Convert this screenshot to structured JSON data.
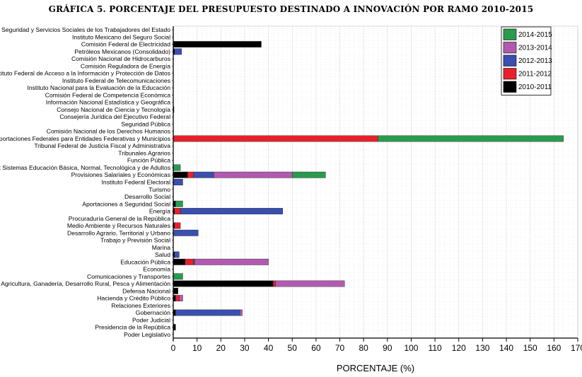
{
  "chart_data": {
    "type": "bar",
    "orientation": "horizontal",
    "stacked": true,
    "title": "GRÁFICA 5.  PORCENTAJE DEL PRESUPUESTO DESTINADO A INNOVACIÓN POR RAMO 2010-2015",
    "xlabel": "PORCENTAJE (%)",
    "ylabel": "",
    "xlim": [
      0,
      170
    ],
    "xticks": [
      0,
      10,
      20,
      30,
      40,
      50,
      60,
      70,
      80,
      90,
      100,
      110,
      120,
      130,
      140,
      150,
      160,
      170
    ],
    "grid": true,
    "legend_position": "top-right",
    "legend_order": [
      "2014-2015",
      "2013-2014",
      "2012-2013",
      "2011-2012",
      "2010-2011"
    ],
    "categories": [
      "Instituto de Seguridad y Servicios Sociales de los Trabajadores del Estado",
      "Instituto Mexicano del Seguro Social",
      "Comisión Federal de Electricidad",
      "Petróleos Mexicanos (Consolidado)",
      "Comisión Nacional de Hidrocarburos",
      "Comisión Reguladora de Energía",
      "Instituto Federal de Acceso a la Información y Protección de Datos",
      "Instituto Federal de Telecomunicaciones",
      "Instituto Nacional para la Evaluación de la Educación",
      "Comisión Federal de Competencia Económica",
      "Información Nacional Estadística y Geográfica",
      "Consejo Nacional de Ciencia y Tecnología",
      "Consejería Jurídica del Ejecutivo Federal",
      "Seguridad Pública",
      "Comisión Nacional de los Derechos Humanos",
      "Aportaciones Federales para Entidades Federativas y Municipios",
      "Tribunal Federal de Justicia Fiscal y Administrativa",
      "Tribunales Agrarios",
      "Función Pública",
      "Prev y Aport Sistemas Educación Básica, Normal, Tecnológica y de Adultos",
      "Provisiones Salariales y Económicas",
      "Instituto Federal Electoral",
      "Turismo",
      "Desarrollo Social",
      "Aportaciones a Seguridad Social",
      "Energía",
      "Procuraduría General de la República",
      "Medio Ambiente y Recursos Naturales",
      "Desarrollo Agrario, Territorial y Urbano",
      "Trabajo y Previsión Social",
      "Marina",
      "Salud",
      "Educación Pública",
      "Economía",
      "Comunicaciones y Transportes",
      "Agricultura, Ganadería, Desarrollo Rural, Pesca y Alimentación",
      "Defensa Nacional",
      "Hacienda y Crédito Público",
      "Relaciones Exteriores",
      "Gobernación",
      "Poder Judicial",
      "Presidencia de la República",
      "Poder Legislativo"
    ],
    "series": [
      {
        "name": "2010-2011",
        "color": "#000000",
        "values": [
          0,
          0,
          37,
          0.5,
          0,
          0,
          0,
          0,
          0,
          0,
          0,
          0.3,
          0,
          0,
          0,
          0,
          0,
          0,
          0,
          0,
          6,
          0,
          0,
          0,
          1,
          0.5,
          0,
          0.5,
          0,
          0,
          0,
          0.5,
          5,
          0,
          0,
          42,
          2,
          1,
          0,
          1,
          0,
          1,
          0
        ]
      },
      {
        "name": "2011-2012",
        "color": "#e8202a",
        "values": [
          0,
          0,
          0,
          0,
          0,
          0,
          0,
          0,
          0,
          0,
          0,
          0,
          0,
          0,
          0,
          86,
          0,
          0,
          0,
          0,
          2.5,
          0,
          0,
          0,
          0,
          2.5,
          0,
          2.5,
          0,
          0,
          0,
          0,
          3.5,
          0,
          0,
          1,
          0,
          1.5,
          0,
          0,
          0,
          0,
          0
        ]
      },
      {
        "name": "2012-2013",
        "color": "#3a4fb0",
        "values": [
          0,
          0,
          0,
          3,
          0,
          0,
          0,
          0,
          0,
          0,
          0,
          0,
          0,
          0,
          0,
          0,
          0,
          0,
          0,
          0,
          8.5,
          4,
          0,
          0,
          0,
          43,
          0,
          0,
          10.5,
          0,
          0,
          2,
          0.5,
          0,
          0,
          0,
          0,
          0,
          0,
          27,
          0,
          0,
          0
        ]
      },
      {
        "name": "2013-2014",
        "color": "#b25ab0",
        "values": [
          0,
          0,
          0,
          0,
          0,
          0,
          0,
          0,
          0,
          0,
          0,
          0,
          0,
          0,
          0,
          0,
          0,
          0,
          0,
          0,
          33,
          0,
          0,
          0,
          0,
          0,
          0,
          0,
          0,
          0,
          0,
          0,
          31,
          0,
          0,
          29,
          0,
          1.5,
          0,
          1,
          0,
          0,
          0
        ]
      },
      {
        "name": "2014-2015",
        "color": "#2a9a4e",
        "values": [
          0,
          0,
          0,
          0,
          0,
          0,
          0,
          0,
          0,
          0,
          0,
          0,
          0,
          0,
          0,
          78,
          0,
          0,
          0,
          3,
          14,
          0,
          0,
          0,
          3,
          0,
          0,
          0,
          0,
          0,
          0,
          0,
          0,
          0,
          4,
          0,
          0,
          0,
          0,
          0,
          0,
          0,
          0
        ]
      }
    ]
  }
}
